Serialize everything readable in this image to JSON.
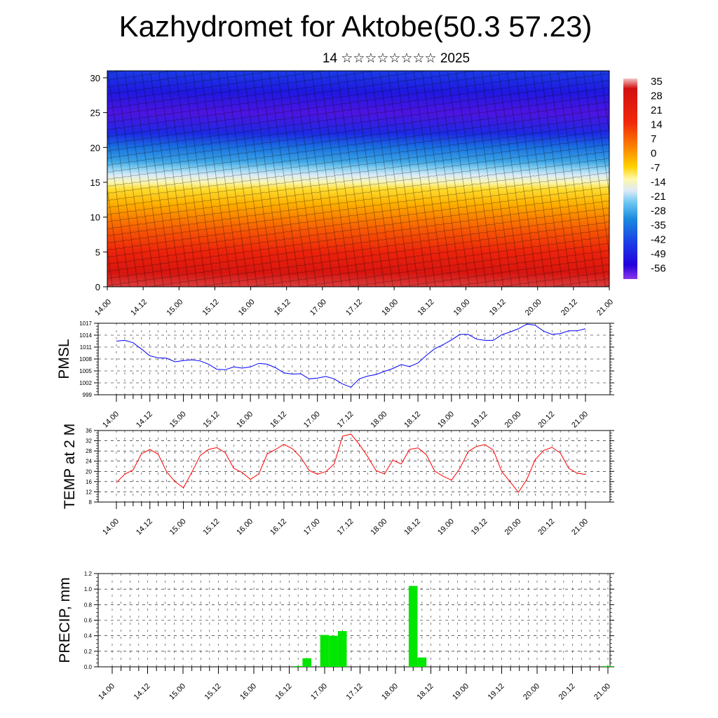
{
  "title": "Kazhydromet for Aktobe(50.3 57.23)",
  "subtitle": "14 ☆☆☆☆☆☆☆☆ 2025",
  "time_labels": [
    "14.00",
    "14.12",
    "15.00",
    "15.12",
    "16.00",
    "16.12",
    "17.00",
    "17.12",
    "18.00",
    "18.12",
    "19.00",
    "19.12",
    "20.00",
    "20.12",
    "21.00"
  ],
  "colors": {
    "pmsl": "#0000ff",
    "temp": "#ff0000",
    "precip": "#00e600",
    "grid": "#000000"
  },
  "chart_data": [
    {
      "type": "heatmap",
      "title": "",
      "ylabel": "",
      "ylim": [
        0,
        31
      ],
      "yticks": [
        0,
        5,
        10,
        15,
        20,
        25,
        30
      ],
      "colorbar": {
        "labels": [
          "35",
          "28",
          "21",
          "14",
          "7",
          "0",
          "-7",
          "-14",
          "-21",
          "-28",
          "-35",
          "-42",
          "-49",
          "-56"
        ]
      },
      "temperature_by_height": [
        {
          "z": 0,
          "t": 33
        },
        {
          "z": 2,
          "t": 30
        },
        {
          "z": 5,
          "t": 24
        },
        {
          "z": 8,
          "t": 17
        },
        {
          "z": 10,
          "t": 12
        },
        {
          "z": 12,
          "t": 6
        },
        {
          "z": 14,
          "t": 0
        },
        {
          "z": 15,
          "t": -6
        },
        {
          "z": 16,
          "t": -12
        },
        {
          "z": 17,
          "t": -18
        },
        {
          "z": 18,
          "t": -26
        },
        {
          "z": 20,
          "t": -34
        },
        {
          "z": 22,
          "t": -45
        },
        {
          "z": 25,
          "t": -55
        },
        {
          "z": 28,
          "t": -48
        },
        {
          "z": 31,
          "t": -42
        }
      ]
    },
    {
      "type": "line",
      "ylabel": "PMSL",
      "ylim": [
        999,
        1017
      ],
      "yticks": [
        999,
        1002,
        1005,
        1008,
        1011,
        1014,
        1017
      ],
      "x": [
        0,
        1,
        2,
        3,
        4,
        5,
        6,
        7,
        8,
        9,
        10,
        11,
        12,
        13,
        14,
        15,
        16,
        17,
        18,
        19,
        20,
        21,
        22,
        23,
        24,
        25,
        26,
        27,
        28,
        29,
        30,
        31,
        32,
        33,
        34,
        35,
        36,
        37,
        38,
        39,
        40,
        41,
        42,
        43,
        44,
        45,
        46,
        47,
        48,
        49,
        50,
        51,
        52,
        53,
        54,
        55,
        56
      ],
      "series": [
        {
          "values": [
            1012.5,
            1012.7,
            1012.1,
            1010.5,
            1008.8,
            1008.3,
            1008.2,
            1007.3,
            1007.6,
            1007.8,
            1007.5,
            1006.7,
            1005.4,
            1005.3,
            1006.0,
            1005.7,
            1006.0,
            1006.9,
            1006.7,
            1005.8,
            1004.5,
            1004.2,
            1004.3,
            1003.0,
            1003.2,
            1003.6,
            1003.0,
            1001.7,
            1000.9,
            1003.0,
            1003.7,
            1004.1,
            1004.9,
            1005.6,
            1006.6,
            1006.1,
            1007.0,
            1008.9,
            1010.6,
            1011.6,
            1012.8,
            1014.2,
            1014.2,
            1013.0,
            1012.7,
            1012.7,
            1014.1,
            1014.8,
            1015.6,
            1016.8,
            1016.5,
            1015.0,
            1014.2,
            1014.4,
            1015.1,
            1015.1,
            1015.6
          ]
        }
      ]
    },
    {
      "type": "line",
      "ylabel": "TEMP at 2 M",
      "ylim": [
        8,
        36
      ],
      "yticks": [
        8,
        12,
        16,
        20,
        24,
        28,
        32,
        36
      ],
      "x": [
        0,
        1,
        2,
        3,
        4,
        5,
        6,
        7,
        8,
        9,
        10,
        11,
        12,
        13,
        14,
        15,
        16,
        17,
        18,
        19,
        20,
        21,
        22,
        23,
        24,
        25,
        26,
        27,
        28,
        29,
        30,
        31,
        32,
        33,
        34,
        35,
        36,
        37,
        38,
        39,
        40,
        41,
        42,
        43,
        44,
        45,
        46,
        47,
        48,
        49,
        50,
        51,
        52,
        53,
        54,
        55,
        56
      ],
      "series": [
        {
          "values": [
            15.6,
            18.9,
            20.6,
            26.9,
            28.6,
            26.7,
            19.8,
            16.0,
            13.6,
            19.6,
            26.2,
            28.6,
            29.3,
            27.3,
            21.2,
            19.6,
            16.9,
            19.0,
            26.8,
            28.6,
            30.6,
            28.9,
            25.6,
            20.4,
            18.9,
            19.9,
            22.9,
            33.8,
            34.6,
            30.6,
            25.8,
            20.3,
            19.0,
            24.4,
            22.9,
            28.6,
            29.2,
            26.5,
            20.1,
            18.1,
            16.6,
            21.1,
            27.8,
            29.8,
            30.5,
            28.3,
            20.0,
            15.9,
            11.8,
            16.9,
            24.6,
            28.2,
            29.4,
            27.2,
            21.2,
            19.3,
            18.8
          ]
        }
      ]
    },
    {
      "type": "bar",
      "ylabel": "PRECIP, mm",
      "ylim": [
        0,
        1.2
      ],
      "yticks": [
        "0.0",
        "0.2",
        "0.4",
        "0.6",
        "0.8",
        "1.0",
        "1.2"
      ],
      "x": [
        21,
        22,
        24,
        25,
        26,
        34,
        35,
        56
      ],
      "values": [
        0.01,
        0.11,
        0.41,
        0.4,
        0.46,
        1.04,
        0.12,
        0.01
      ]
    }
  ]
}
